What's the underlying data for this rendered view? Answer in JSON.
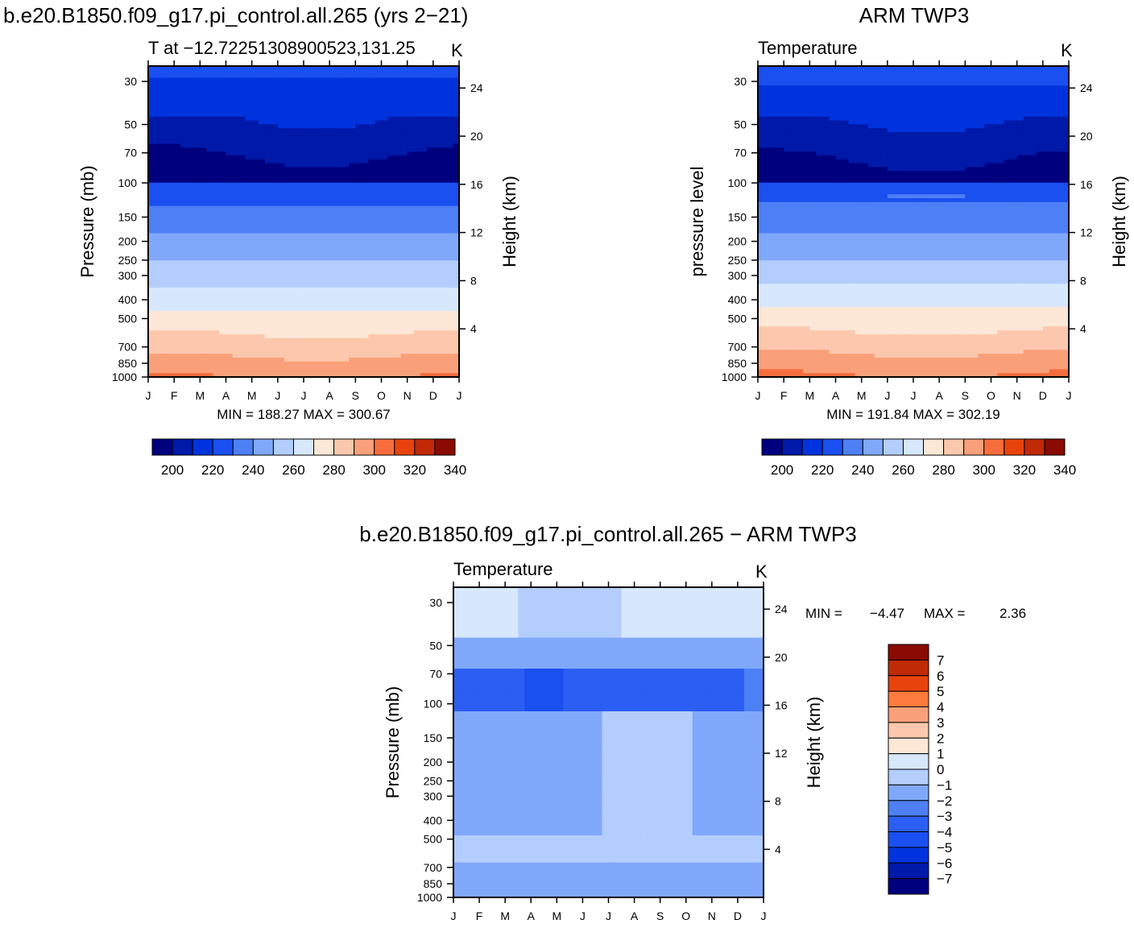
{
  "figure": {
    "left_title": "b.e20.B1850.f09_g17.pi_control.all.265 (yrs 2−21)",
    "right_title": "ARM TWP3",
    "diff_title": "b.e20.B1850.f09_g17.pi_control.all.265 − ARM TWP3"
  },
  "chart_data": [
    {
      "id": "model",
      "type": "heatmap",
      "subtitle": "T at −12.72251308900523,131.25",
      "units": "K",
      "ylabel": "Pressure (mb)",
      "y2label": "Height (km)",
      "months": [
        "J",
        "F",
        "M",
        "A",
        "M",
        "J",
        "J",
        "A",
        "S",
        "O",
        "N",
        "D",
        "J"
      ],
      "pressure_ticks": [
        "30",
        "50",
        "70",
        "100",
        "150",
        "200",
        "250",
        "300",
        "400",
        "500",
        "700",
        "850",
        "1000"
      ],
      "height_ticks": [
        "24",
        "20",
        "16",
        "12",
        "8",
        "4"
      ],
      "stats": "MIN = 188.27 MAX = 300.67",
      "min": 188.27,
      "max": 300.67,
      "levels": [
        200,
        210,
        220,
        230,
        240,
        250,
        260,
        270,
        280,
        290,
        300,
        310,
        320,
        330,
        340
      ],
      "colorbar_labels": [
        "200",
        "220",
        "240",
        "260",
        "280",
        "300",
        "320",
        "340"
      ],
      "colors": [
        "#00007f",
        "#0019a8",
        "#0033dd",
        "#1a4ff0",
        "#4d7ff5",
        "#80a8fa",
        "#b3cdfc",
        "#d7e8fd",
        "#fde7d6",
        "#fcc8ad",
        "#f9a07a",
        "#f66d3d",
        "#e8430d",
        "#c02a07",
        "#8a0b02"
      ]
    },
    {
      "id": "obs",
      "type": "heatmap",
      "subtitle": "Temperature",
      "units": "K",
      "ylabel": "pressure level",
      "y2label": "Height (km)",
      "months": [
        "J",
        "F",
        "M",
        "A",
        "M",
        "J",
        "J",
        "A",
        "S",
        "O",
        "N",
        "D",
        "J"
      ],
      "pressure_ticks": [
        "30",
        "50",
        "70",
        "100",
        "150",
        "200",
        "250",
        "300",
        "400",
        "500",
        "700",
        "850",
        "1000"
      ],
      "height_ticks": [
        "24",
        "20",
        "16",
        "12",
        "8",
        "4"
      ],
      "stats": "MIN = 191.84 MAX = 302.19",
      "min": 191.84,
      "max": 302.19,
      "levels": [
        200,
        210,
        220,
        230,
        240,
        250,
        260,
        270,
        280,
        290,
        300,
        310,
        320,
        330,
        340
      ],
      "colorbar_labels": [
        "200",
        "220",
        "240",
        "260",
        "280",
        "300",
        "320",
        "340"
      ]
    },
    {
      "id": "diff",
      "type": "heatmap",
      "subtitle": "Temperature",
      "units": "K",
      "ylabel": "Pressure (mb)",
      "y2label": "Height (km)",
      "months": [
        "J",
        "F",
        "M",
        "A",
        "M",
        "J",
        "J",
        "A",
        "S",
        "O",
        "N",
        "D",
        "J"
      ],
      "pressure_ticks": [
        "30",
        "50",
        "70",
        "100",
        "150",
        "200",
        "250",
        "300",
        "400",
        "500",
        "700",
        "850",
        "1000"
      ],
      "height_ticks": [
        "24",
        "20",
        "16",
        "12",
        "8",
        "4"
      ],
      "stats_min_label": "MIN =",
      "stats_min_value": "−4.47",
      "stats_max_label": "MAX =",
      "stats_max_value": "2.36",
      "min": -4.47,
      "max": 2.36,
      "levels": [
        -7,
        -6,
        -5,
        -4,
        -3,
        -2,
        -1,
        0,
        1,
        2,
        3,
        4,
        5,
        6,
        7
      ],
      "colorbar_labels": [
        "7",
        "6",
        "5",
        "4",
        "3",
        "2",
        "1",
        "0",
        "−1",
        "−2",
        "−3",
        "−4",
        "−5",
        "−6",
        "−7"
      ],
      "colors": [
        "#00007f",
        "#0019a8",
        "#0033dd",
        "#1a4ff0",
        "#2b5ef2",
        "#4d7ff5",
        "#80a8fa",
        "#b3cdfc",
        "#d7e8fd",
        "#fde7d6",
        "#fcc8ad",
        "#f9a07a",
        "#ff7a3c",
        "#e8430d",
        "#c02a07",
        "#8a0b02"
      ]
    }
  ]
}
